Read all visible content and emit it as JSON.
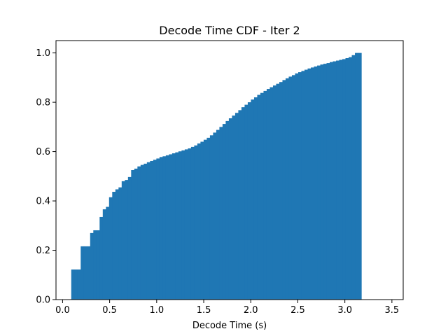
{
  "chart_data": {
    "type": "bar",
    "subtype": "cumulative-histogram",
    "title": "Decode Time CDF - Iter 2",
    "xlabel": "Decode Time (s)",
    "ylabel": "",
    "xlim": [
      -0.07,
      3.62
    ],
    "ylim": [
      0,
      1.05
    ],
    "grid": false,
    "legend": null,
    "color": "#1f77b4",
    "x_ticks": [
      {
        "value": 0.0,
        "label": "0.0"
      },
      {
        "value": 0.5,
        "label": "0.5"
      },
      {
        "value": 1.0,
        "label": "1.0"
      },
      {
        "value": 1.5,
        "label": "1.5"
      },
      {
        "value": 2.0,
        "label": "2.0"
      },
      {
        "value": 2.5,
        "label": "2.5"
      },
      {
        "value": 3.0,
        "label": "3.0"
      },
      {
        "value": 3.5,
        "label": "3.5"
      }
    ],
    "y_ticks": [
      {
        "value": 0.0,
        "label": "0.0"
      },
      {
        "value": 0.2,
        "label": "0.2"
      },
      {
        "value": 0.4,
        "label": "0.4"
      },
      {
        "value": 0.6,
        "label": "0.6"
      },
      {
        "value": 0.8,
        "label": "0.8"
      },
      {
        "value": 1.0,
        "label": "1.0"
      }
    ],
    "bin_start": 0.092,
    "bin_width": 0.0335,
    "values": [
      0.122,
      0.122,
      0.122,
      0.216,
      0.216,
      0.216,
      0.27,
      0.281,
      0.281,
      0.335,
      0.366,
      0.376,
      0.415,
      0.437,
      0.447,
      0.455,
      0.48,
      0.485,
      0.497,
      0.525,
      0.531,
      0.54,
      0.546,
      0.551,
      0.557,
      0.562,
      0.567,
      0.572,
      0.578,
      0.581,
      0.585,
      0.589,
      0.593,
      0.597,
      0.601,
      0.605,
      0.609,
      0.613,
      0.619,
      0.625,
      0.633,
      0.64,
      0.648,
      0.656,
      0.666,
      0.677,
      0.688,
      0.7,
      0.712,
      0.724,
      0.735,
      0.746,
      0.757,
      0.768,
      0.78,
      0.79,
      0.8,
      0.811,
      0.82,
      0.83,
      0.838,
      0.846,
      0.854,
      0.861,
      0.868,
      0.875,
      0.882,
      0.89,
      0.897,
      0.904,
      0.91,
      0.917,
      0.922,
      0.927,
      0.932,
      0.937,
      0.941,
      0.945,
      0.949,
      0.953,
      0.956,
      0.959,
      0.963,
      0.966,
      0.969,
      0.972,
      0.975,
      0.979,
      0.983,
      0.991,
      1.0,
      1.0
    ]
  }
}
